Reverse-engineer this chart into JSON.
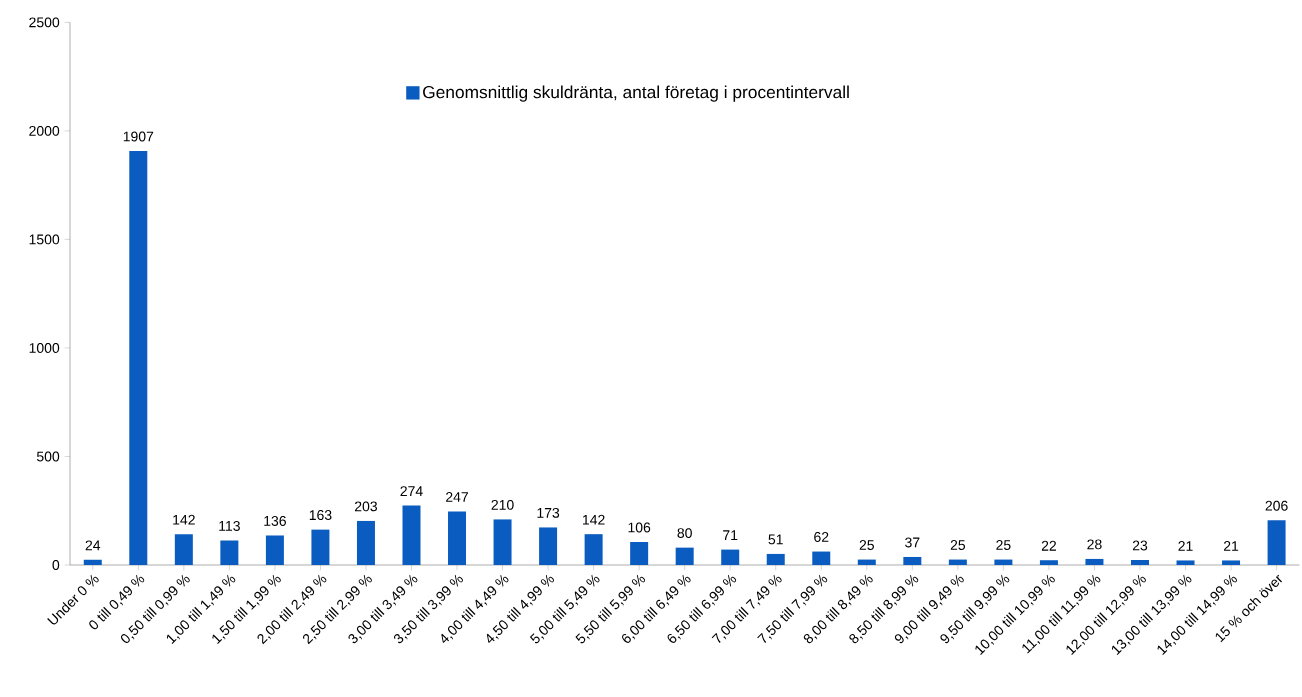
{
  "chart_data": {
    "type": "bar",
    "categories": [
      "Under 0 %",
      "0 till 0,49 %",
      "0,50 till 0,99 %",
      "1,00 till 1,49 %",
      "1,50 till 1,99 %",
      "2,00 till 2,49 %",
      "2,50 till 2,99 %",
      "3,00 till 3,49 %",
      "3,50 till 3,99 %",
      "4,00 till 4,49 %",
      "4,50 till 4,99 %",
      "5,00 till 5,49 %",
      "5,50 till 5,99 %",
      "6,00 till 6,49 %",
      "6,50 till 6,99 %",
      "7,00 till 7,49 %",
      "7,50 till 7,99 %",
      "8,00 till 8,49 %",
      "8,50 till 8,99 %",
      "9,00 till 9,49 %",
      "9,50 till 9,99 %",
      "10,00 till 10,99 %",
      "11,00 till 11,99 %",
      "12,00 till 12,99 %",
      "13,00 till 13,99 %",
      "14,00 till 14,99 %",
      "15 % och över"
    ],
    "series": [
      {
        "name": "Genomsnittlig skuldränta, antal företag i procentintervall",
        "color": "#0a5cc0",
        "values": [
          24,
          1907,
          142,
          113,
          136,
          163,
          203,
          274,
          247,
          210,
          173,
          142,
          106,
          80,
          71,
          51,
          62,
          25,
          37,
          25,
          25,
          22,
          28,
          23,
          21,
          21,
          206
        ]
      }
    ],
    "ylim": [
      0,
      2500
    ],
    "yticks": [
      0,
      500,
      1000,
      1500,
      2000,
      2500
    ],
    "data_labels": true,
    "legend": "top",
    "grid": false
  }
}
